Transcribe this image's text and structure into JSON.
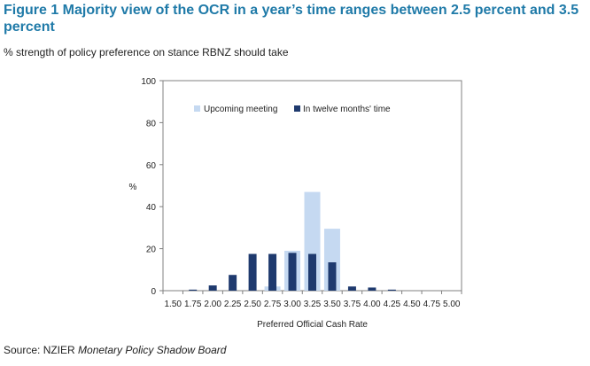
{
  "figure": {
    "title": "Figure 1 Majority view of the OCR in a year’s time ranges between 2.5 percent and 3.5 percent",
    "subtitle": "% strength of policy preference on stance RBNZ should take"
  },
  "source": {
    "prefix": "Source: NZIER ",
    "italic": "Monetary Policy Shadow Board"
  },
  "colors": {
    "title": "#1f7aa8",
    "upcoming": "#c5d9f1",
    "twelve": "#1f3a6e",
    "axis": "#808080"
  },
  "chart_data": {
    "type": "bar",
    "title": "Figure 1 Majority view of the OCR in a year’s time ranges between 2.5 percent and 3.5 percent",
    "xlabel": "Preferred  Official Cash Rate",
    "ylabel": "%",
    "ylim": [
      0,
      100
    ],
    "yticks": [
      "0",
      "20",
      "40",
      "60",
      "80",
      "100"
    ],
    "grid": false,
    "legend_position": "top-right",
    "categories": [
      "1.50",
      "1.75",
      "2.00",
      "2.25",
      "2.50",
      "2.75",
      "3.00",
      "3.25",
      "3.50",
      "3.75",
      "4.00",
      "4.25",
      "4.50",
      "4.75",
      "5.00"
    ],
    "series": [
      {
        "name": "Upcoming meeting",
        "values": [
          0,
          0,
          0,
          0,
          0,
          2,
          19,
          47,
          29.5,
          0,
          0,
          0,
          0,
          0,
          0
        ]
      },
      {
        "name": "In twelve months' time",
        "values": [
          0,
          0.5,
          2.5,
          7.5,
          17.5,
          17.5,
          18,
          17.5,
          13.5,
          2,
          1.5,
          0.5,
          0,
          0,
          0
        ]
      }
    ]
  }
}
